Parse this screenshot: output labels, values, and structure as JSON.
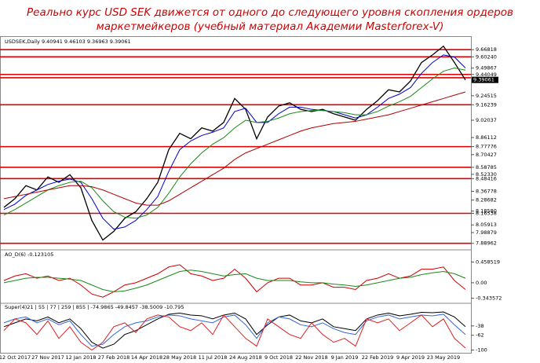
{
  "chart_data": [
    {
      "type": "line",
      "title": [
        "Реально курс USD SEK движется от одного до следующего уровня скопления ордеров",
        "маркетмейкеров (учебный материал Академии Masterforex-V)"
      ],
      "header": "USDSEK,Daily  9.40941 9.46103 9.36963 9.39061",
      "last": 9.39061,
      "categories": [
        null,
        "12 Oct 2017",
        null,
        null,
        "27 Nov 2017",
        null,
        null,
        "12 Jan 2018",
        null,
        null,
        "27 Feb 2018",
        null,
        null,
        "14 Apr 2018",
        null,
        null,
        "28 May 2018",
        null,
        null,
        "11 Jul 2018",
        null,
        null,
        "24 Aug 2018",
        null,
        null,
        "9 Oct 2018",
        null,
        null,
        "22 Nov 2018",
        null,
        null,
        "9 Jan 2019",
        null,
        null,
        "22 Feb 2019",
        null,
        null,
        "9 Apr 2019",
        null,
        null,
        "23 May 2019",
        null,
        null
      ],
      "ylim": [
        7.83,
        9.785
      ],
      "yticks": [
        9.66818,
        {
          "value": 9.6024,
          "label": "9.60240"
        },
        9.49867,
        9.44049,
        9.24515,
        9.16239,
        9.02037,
        8.86112,
        8.77776,
        8.70427,
        8.58785,
        {
          "value": 8.5233,
          "label": "8.52330"
        },
        8.48416,
        8.36778,
        8.28682,
        {
          "value": 8.1858,
          "label": "8.18580"
        },
        8.16538,
        8.05913,
        7.98879,
        7.88962
      ],
      "levels": [
        9.66818,
        9.6024,
        9.44049,
        9.41,
        9.16239,
        8.77776,
        8.58785,
        8.48416,
        8.16538,
        7.88962
      ],
      "level_color": "#e00000",
      "series": [
        {
          "color": "#000000",
          "values": [
            8.22,
            8.3,
            8.42,
            8.38,
            8.5,
            8.45,
            8.52,
            8.4,
            8.1,
            7.92,
            8.0,
            8.12,
            8.18,
            8.3,
            8.45,
            8.75,
            8.9,
            8.85,
            8.95,
            8.92,
            9.0,
            9.22,
            9.12,
            8.85,
            9.05,
            9.15,
            9.18,
            9.12,
            9.1,
            9.12,
            9.08,
            9.05,
            9.02,
            9.12,
            9.2,
            9.3,
            9.28,
            9.38,
            9.55,
            9.62,
            9.7,
            9.55,
            9.39
          ]
        },
        {
          "color": "#0000cc",
          "values": [
            8.2,
            8.25,
            8.33,
            8.38,
            8.43,
            8.46,
            8.48,
            8.45,
            8.3,
            8.12,
            8.02,
            8.04,
            8.1,
            8.2,
            8.32,
            8.55,
            8.75,
            8.83,
            8.88,
            8.91,
            8.95,
            9.1,
            9.13,
            9.0,
            9.0,
            9.08,
            9.14,
            9.14,
            9.12,
            9.11,
            9.1,
            9.07,
            9.04,
            9.07,
            9.14,
            9.22,
            9.26,
            9.32,
            9.45,
            9.55,
            9.62,
            9.6,
            9.5
          ]
        },
        {
          "color": "#1a8a1a",
          "values": [
            8.15,
            8.2,
            8.26,
            8.32,
            8.38,
            8.42,
            8.45,
            8.46,
            8.4,
            8.28,
            8.18,
            8.13,
            8.12,
            8.15,
            8.22,
            8.35,
            8.5,
            8.62,
            8.72,
            8.8,
            8.86,
            8.95,
            9.02,
            9.0,
            9.01,
            9.04,
            9.08,
            9.1,
            9.11,
            9.11,
            9.1,
            9.09,
            9.07,
            9.07,
            9.1,
            9.15,
            9.19,
            9.24,
            9.32,
            9.4,
            9.47,
            9.5,
            9.48
          ]
        },
        {
          "color": "#b00000",
          "values": [
            8.3,
            8.32,
            8.34,
            8.36,
            8.38,
            8.4,
            8.42,
            8.42,
            8.41,
            8.38,
            8.34,
            8.3,
            8.26,
            8.24,
            8.24,
            8.28,
            8.34,
            8.4,
            8.46,
            8.52,
            8.58,
            8.66,
            8.72,
            8.76,
            8.8,
            8.84,
            8.88,
            8.92,
            8.95,
            8.97,
            8.99,
            9.0,
            9.01,
            9.03,
            9.05,
            9.07,
            9.1,
            9.13,
            9.16,
            9.19,
            9.22,
            9.25,
            9.28
          ]
        }
      ]
    },
    {
      "type": "line",
      "header": "AO_D(6) -0.123105",
      "ylim": [
        -0.42,
        0.52
      ],
      "yticks": [
        0.458519,
        {
          "value": 0,
          "label": "0.00"
        },
        -0.343572
      ],
      "series": [
        {
          "color": "#cc0000",
          "values": [
            0.05,
            0.15,
            0.2,
            0.1,
            0.15,
            0.05,
            0.1,
            -0.05,
            -0.25,
            -0.32,
            -0.2,
            -0.05,
            0.0,
            0.1,
            0.2,
            0.35,
            0.4,
            0.2,
            0.15,
            0.05,
            0.1,
            0.3,
            0.1,
            -0.2,
            0.0,
            0.1,
            0.1,
            -0.05,
            -0.05,
            0.0,
            -0.1,
            -0.1,
            -0.15,
            0.05,
            0.1,
            0.2,
            0.1,
            0.15,
            0.3,
            0.3,
            0.35,
            0.05,
            -0.15
          ]
        },
        {
          "color": "#1a8a1a",
          "values": [
            0.0,
            0.05,
            0.1,
            0.12,
            0.12,
            0.1,
            0.08,
            0.05,
            -0.05,
            -0.15,
            -0.2,
            -0.18,
            -0.12,
            -0.05,
            0.05,
            0.15,
            0.25,
            0.28,
            0.25,
            0.2,
            0.15,
            0.18,
            0.2,
            0.1,
            0.05,
            0.05,
            0.05,
            0.02,
            0,
            0,
            -0.03,
            -0.05,
            -0.08,
            -0.05,
            0.0,
            0.05,
            0.1,
            0.12,
            0.18,
            0.22,
            0.25,
            0.2,
            0.1
          ]
        }
      ]
    },
    {
      "type": "line",
      "header": "Super(4)21 | 55 | 77 | 259 | 855 | -74.9865 -49.8457 -38.5009 -10.795",
      "ylim": [
        -105,
        0
      ],
      "yticks": [
        -38,
        -62,
        -100
      ],
      "series": [
        {
          "color": "#000000",
          "values": [
            -40,
            -30,
            -20,
            -25,
            -15,
            -30,
            -20,
            -45,
            -80,
            -95,
            -85,
            -60,
            -50,
            -35,
            -20,
            -8,
            -5,
            -10,
            -12,
            -20,
            -10,
            -5,
            -20,
            -60,
            -35,
            -15,
            -10,
            -25,
            -30,
            -20,
            -40,
            -45,
            -50,
            -20,
            -10,
            -5,
            -12,
            -8,
            -3,
            -4,
            -2,
            -15,
            -40
          ]
        },
        {
          "color": "#3366dd",
          "values": [
            -30,
            -20,
            -15,
            -30,
            -20,
            -35,
            -25,
            -60,
            -90,
            -85,
            -60,
            -40,
            -30,
            -25,
            -15,
            -10,
            -12,
            -20,
            -25,
            -30,
            -15,
            -10,
            -35,
            -70,
            -30,
            -15,
            -20,
            -35,
            -40,
            -30,
            -45,
            -55,
            -60,
            -25,
            -15,
            -10,
            -20,
            -15,
            -10,
            -12,
            -8,
            -35,
            -60
          ]
        },
        {
          "color": "#dd2222",
          "values": [
            -50,
            -20,
            -30,
            -60,
            -25,
            -70,
            -40,
            -80,
            -100,
            -80,
            -40,
            -30,
            -55,
            -20,
            -10,
            -15,
            -40,
            -50,
            -30,
            -60,
            -10,
            -40,
            -70,
            -90,
            -20,
            -40,
            -60,
            -70,
            -30,
            -60,
            -80,
            -70,
            -90,
            -20,
            -30,
            -20,
            -50,
            -30,
            -10,
            -40,
            -20,
            -70,
            -95
          ]
        }
      ]
    }
  ]
}
